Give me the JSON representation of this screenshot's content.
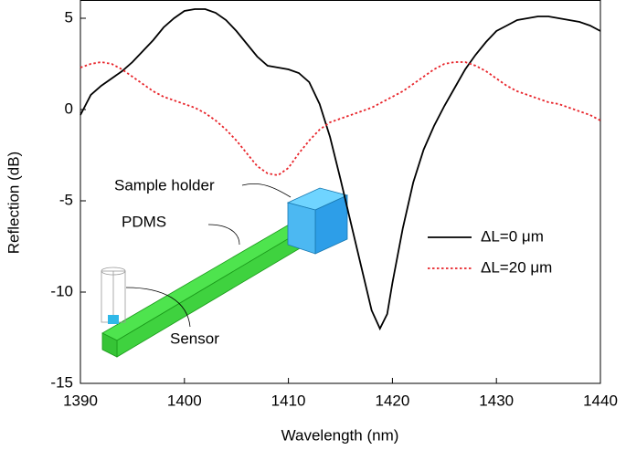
{
  "chart_data": {
    "type": "line",
    "xlabel": "Wavelength (nm)",
    "ylabel": "Reflection (dB)",
    "xlim": [
      1390,
      1440
    ],
    "xticks": [
      1390,
      1400,
      1410,
      1420,
      1430,
      1440
    ],
    "ylim": [
      -15,
      6
    ],
    "yticks": [
      -15,
      -10,
      -5,
      0,
      5
    ],
    "legend": "right",
    "annotations": [
      "Sample holder",
      "PDMS",
      "Sensor"
    ],
    "series": [
      {
        "name": "ΔL=0 μm",
        "color": "#000000",
        "dash": "solid",
        "x": [
          1390,
          1391,
          1392,
          1393,
          1394,
          1395,
          1396,
          1397,
          1398,
          1399,
          1400,
          1401,
          1402,
          1403,
          1404,
          1405,
          1406,
          1407,
          1408,
          1409,
          1410,
          1411,
          1412,
          1413,
          1414,
          1415,
          1416,
          1417,
          1418,
          1418.8,
          1419.5,
          1420,
          1421,
          1422,
          1423,
          1424,
          1425,
          1426,
          1427,
          1428,
          1429,
          1430,
          1431,
          1432,
          1433,
          1434,
          1435,
          1436,
          1437,
          1438,
          1439,
          1440
        ],
        "values": [
          -0.3,
          0.8,
          1.3,
          1.7,
          2.1,
          2.6,
          3.2,
          3.8,
          4.5,
          5.0,
          5.4,
          5.5,
          5.5,
          5.3,
          4.9,
          4.3,
          3.6,
          2.9,
          2.4,
          2.3,
          2.2,
          2.0,
          1.5,
          0.3,
          -1.5,
          -3.8,
          -6.2,
          -8.6,
          -11,
          -12,
          -11.2,
          -9.5,
          -6.5,
          -4.0,
          -2.2,
          -0.9,
          0.2,
          1.2,
          2.2,
          3.0,
          3.7,
          4.3,
          4.6,
          4.9,
          5.0,
          5.1,
          5.1,
          5.0,
          4.9,
          4.8,
          4.6,
          4.3
        ]
      },
      {
        "name": "ΔL=20 μm",
        "color": "#e8242a",
        "dash": "dotted",
        "x": [
          1390,
          1391,
          1392,
          1393,
          1394,
          1395,
          1396,
          1397,
          1398,
          1399,
          1400,
          1401,
          1402,
          1403,
          1404,
          1405,
          1406,
          1407,
          1408,
          1409,
          1410,
          1411,
          1412,
          1413,
          1414,
          1415,
          1416,
          1417,
          1418,
          1419,
          1420,
          1421,
          1422,
          1423,
          1424,
          1425,
          1426,
          1427,
          1428,
          1429,
          1430,
          1431,
          1432,
          1433,
          1434,
          1435,
          1436,
          1437,
          1438,
          1439,
          1440
        ],
        "values": [
          2.3,
          2.5,
          2.6,
          2.5,
          2.2,
          1.8,
          1.4,
          1.0,
          0.7,
          0.5,
          0.3,
          0.1,
          -0.2,
          -0.6,
          -1.1,
          -1.7,
          -2.4,
          -3.1,
          -3.5,
          -3.6,
          -3.2,
          -2.4,
          -1.7,
          -1.1,
          -0.7,
          -0.5,
          -0.3,
          -0.1,
          0.1,
          0.4,
          0.7,
          1.0,
          1.4,
          1.8,
          2.2,
          2.5,
          2.6,
          2.6,
          2.4,
          2.1,
          1.7,
          1.3,
          1.0,
          0.8,
          0.6,
          0.4,
          0.3,
          0.1,
          -0.1,
          -0.3,
          -0.6
        ]
      }
    ]
  }
}
